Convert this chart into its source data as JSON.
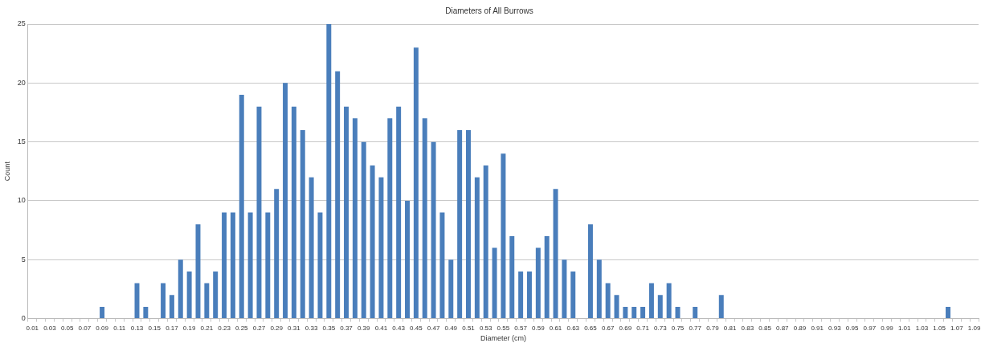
{
  "chart_data": {
    "type": "bar",
    "title": "Diameters of All Burrows",
    "xlabel": "Diameter (cm)",
    "ylabel": "Count",
    "categories": [
      "0.01",
      null,
      "0.03",
      null,
      "0.05",
      null,
      "0.07",
      null,
      "0.09",
      null,
      "0.11",
      null,
      "0.13",
      null,
      "0.15",
      null,
      "0.17",
      null,
      "0.19",
      null,
      "0.21",
      null,
      "0.23",
      null,
      "0.25",
      null,
      "0.27",
      null,
      "0.29",
      null,
      "0.31",
      null,
      "0.33",
      null,
      "0.35",
      null,
      "0.37",
      null,
      "0.39",
      null,
      "0.41",
      null,
      "0.43",
      null,
      "0.45",
      null,
      "0.47",
      null,
      "0.49",
      null,
      "0.51",
      null,
      "0.53",
      null,
      "0.55",
      null,
      "0.57",
      null,
      "0.59",
      null,
      "0.61",
      null,
      "0.63",
      null,
      "0.65",
      null,
      "0.67",
      null,
      "0.69",
      null,
      "0.71",
      null,
      "0.73",
      null,
      "0.75",
      null,
      "0.77",
      null,
      "0.79",
      null,
      "0.81",
      null,
      "0.83",
      null,
      "0.85",
      null,
      "0.87",
      null,
      "0.89",
      null,
      "0.91",
      null,
      "0.93",
      null,
      "0.95",
      null,
      "0.97",
      null,
      "0.99",
      null,
      "1.01",
      null,
      "1.03",
      null,
      "1.05",
      null,
      "1.07",
      null,
      "1.09"
    ],
    "values": [
      0,
      0,
      0,
      0,
      0,
      0,
      0,
      0,
      1,
      0,
      0,
      0,
      3,
      1,
      0,
      3,
      2,
      5,
      4,
      8,
      3,
      4,
      9,
      9,
      19,
      9,
      18,
      9,
      11,
      20,
      18,
      16,
      12,
      9,
      25,
      21,
      18,
      17,
      15,
      13,
      12,
      17,
      18,
      10,
      23,
      17,
      15,
      9,
      5,
      16,
      16,
      12,
      13,
      6,
      14,
      7,
      4,
      4,
      6,
      7,
      11,
      5,
      4,
      0,
      8,
      5,
      3,
      2,
      1,
      1,
      1,
      3,
      2,
      3,
      1,
      0,
      1,
      0,
      0,
      2,
      0,
      0,
      0,
      0,
      0,
      0,
      0,
      0,
      0,
      0,
      0,
      0,
      0,
      0,
      0,
      0,
      0,
      0,
      0,
      0,
      0,
      0,
      0,
      0,
      0,
      1,
      0,
      0,
      0
    ],
    "color": "#4a7ebb",
    "ylim": [
      0,
      25
    ],
    "yticks": [
      0,
      5,
      10,
      15,
      20,
      25
    ],
    "grid": "y"
  }
}
